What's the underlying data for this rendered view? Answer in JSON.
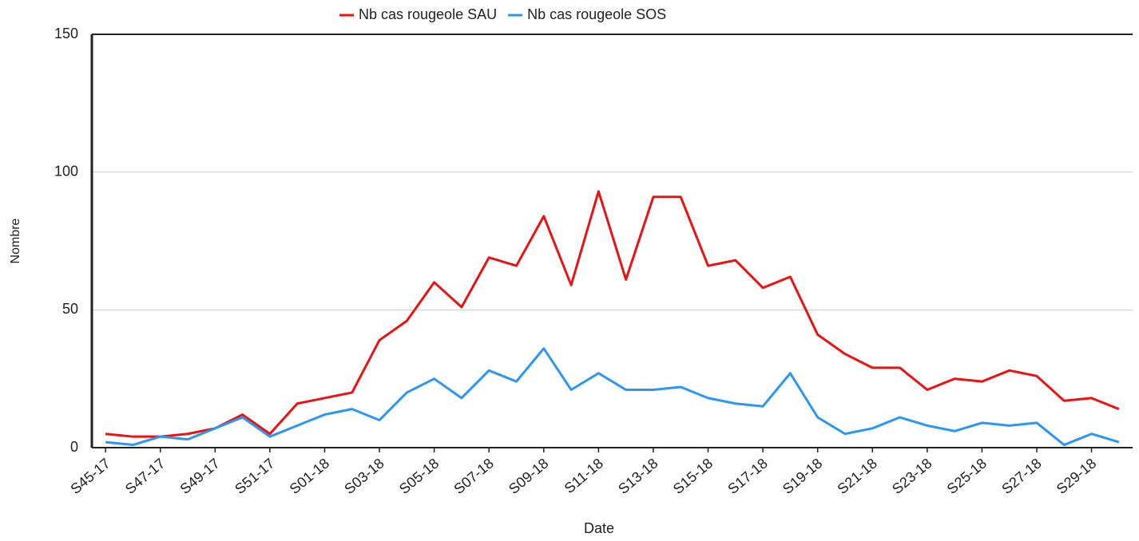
{
  "chart_data": {
    "type": "line",
    "x_label": "Date",
    "y_label": "Nombre",
    "categories": [
      "S45-17",
      null,
      "S47-17",
      null,
      "S49-17",
      null,
      "S51-17",
      null,
      "S01-18",
      null,
      "S03-18",
      null,
      "S05-18",
      null,
      "S07-18",
      null,
      "S09-18",
      null,
      "S11-18",
      null,
      "S13-18",
      null,
      "S15-18",
      null,
      "S17-18",
      null,
      "S19-18",
      null,
      "S21-18",
      null,
      "S23-18",
      null,
      "S25-18",
      null,
      "S27-18",
      null,
      "S29-18",
      null
    ],
    "series": [
      {
        "name": "Nb cas rougeole SAU",
        "color": "#ee1111",
        "values": [
          5,
          4,
          4,
          5,
          7,
          12,
          5,
          16,
          18,
          20,
          39,
          46,
          60,
          51,
          69,
          66,
          84,
          59,
          93,
          61,
          91,
          91,
          66,
          68,
          58,
          62,
          41,
          34,
          29,
          29,
          21,
          25,
          24,
          28,
          26,
          17,
          18,
          14
        ]
      },
      {
        "name": "Nb cas rougeole SOS",
        "color": "#2a97f5",
        "values": [
          2,
          1,
          4,
          3,
          7,
          11,
          4,
          8,
          12,
          14,
          10,
          20,
          25,
          18,
          28,
          24,
          36,
          21,
          27,
          21,
          21,
          22,
          18,
          16,
          15,
          27,
          11,
          5,
          7,
          11,
          8,
          6,
          9,
          8,
          9,
          1,
          5,
          2
        ]
      }
    ],
    "ylim": [
      0,
      150
    ],
    "yticks": [
      0,
      50,
      100,
      150
    ],
    "grid": true,
    "legend": "top"
  }
}
